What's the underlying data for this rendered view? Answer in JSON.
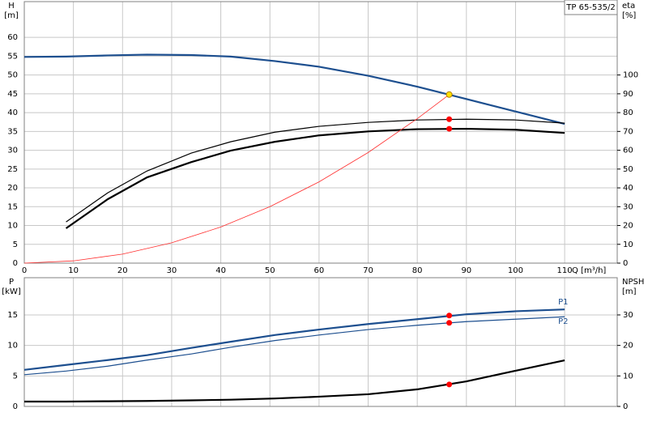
{
  "chart_data": [
    {
      "type": "line",
      "legend_box": "TP 65-535/2",
      "y_label": "H",
      "y_unit": "[m]",
      "y2_label": "eta",
      "y2_unit": "[%]",
      "x_label": "Q [m³/h]",
      "xlim": [
        0,
        120.7
      ],
      "xticks": [
        0,
        10,
        20,
        30,
        40,
        50,
        60,
        70,
        80,
        90,
        100,
        110
      ],
      "show_xtick_labels": true,
      "ylim": [
        0,
        69.5
      ],
      "yticks": [
        0,
        5,
        10,
        15,
        20,
        25,
        30,
        35,
        40,
        45,
        50,
        55,
        60
      ],
      "y2lim": [
        0,
        139
      ],
      "y2ticks": [
        0,
        10,
        20,
        30,
        40,
        50,
        60,
        70,
        80,
        90,
        100
      ],
      "grid": true,
      "x": [
        0,
        8.5,
        17,
        25,
        34,
        42,
        51,
        60,
        70,
        80,
        90,
        100,
        110
      ],
      "series": [
        {
          "color": "#1d4f8f",
          "line_width": 2.2,
          "values": [
            54.8,
            54.9,
            55.2,
            55.4,
            55.3,
            54.9,
            53.7,
            52.2,
            49.8,
            46.9,
            43.6,
            40.3,
            37.0
          ]
        },
        {
          "color": "#000000",
          "line_width": 1.2,
          "axis": "y2",
          "values": [
            null,
            21.9,
            37.4,
            49,
            58.5,
            64.5,
            69.6,
            72.7,
            74.8,
            76.1,
            76.5,
            76.1,
            74.4
          ]
        },
        {
          "color": "#000000",
          "line_width": 2.2,
          "axis": "y2",
          "values": [
            null,
            18.5,
            34,
            45.6,
            53.7,
            59.8,
            64.5,
            67.9,
            70,
            71.2,
            71.4,
            70.9,
            69.2
          ]
        },
        {
          "color": "#ff3030",
          "line_width": 0.8,
          "x": [
            0,
            10,
            20,
            30,
            40,
            50,
            60,
            70,
            80,
            86.5
          ],
          "values": [
            0,
            0.6,
            2.4,
            5.4,
            9.6,
            15,
            21.6,
            29.4,
            38.4,
            44.8
          ]
        }
      ],
      "points": [
        {
          "x": 86.5,
          "y": 44.8,
          "color": "#ffe000"
        },
        {
          "x": 86.5,
          "y": 76.5,
          "axis": "y2",
          "color": "#ff0000"
        },
        {
          "x": 86.5,
          "y": 71.4,
          "axis": "y2",
          "color": "#ff0000"
        }
      ]
    },
    {
      "type": "line",
      "y_label": "P",
      "y_unit": "[kW]",
      "y2_label": "NPSH",
      "y2_unit": "[m]",
      "xlim": [
        0,
        120.7
      ],
      "xticks": [
        0,
        10,
        20,
        30,
        40,
        50,
        60,
        70,
        80,
        90,
        100,
        110
      ],
      "show_xtick_labels": false,
      "ylim": [
        0,
        21.1
      ],
      "yticks": [
        0,
        5,
        10,
        15
      ],
      "y2lim": [
        0,
        42.2
      ],
      "y2ticks": [
        0,
        10,
        20,
        30
      ],
      "grid": true,
      "x": [
        0,
        8.5,
        17,
        25,
        34,
        42,
        51,
        60,
        70,
        80,
        90,
        100,
        110
      ],
      "series": [
        {
          "name": "P1",
          "color": "#1d4f8f",
          "line_width": 2.2,
          "values": [
            6.0,
            6.8,
            7.6,
            8.4,
            9.6,
            10.6,
            11.7,
            12.6,
            13.5,
            14.3,
            15.1,
            15.6,
            15.9
          ]
        },
        {
          "name": "P2",
          "color": "#1d4f8f",
          "line_width": 1.2,
          "values": [
            5.2,
            5.8,
            6.6,
            7.6,
            8.6,
            9.7,
            10.8,
            11.7,
            12.6,
            13.3,
            13.9,
            14.3,
            14.7
          ]
        },
        {
          "color": "#000000",
          "line_width": 2.2,
          "axis": "y2",
          "values": [
            1.6,
            1.6,
            1.7,
            1.8,
            2.0,
            2.2,
            2.6,
            3.2,
            4.0,
            5.6,
            8.2,
            11.7,
            15.1
          ]
        }
      ],
      "points": [
        {
          "x": 86.5,
          "y": 14.9,
          "color": "#ff0000"
        },
        {
          "x": 86.5,
          "y": 13.7,
          "color": "#ff0000"
        },
        {
          "x": 86.5,
          "y": 7.2,
          "axis": "y2",
          "color": "#ff0000"
        }
      ]
    }
  ]
}
